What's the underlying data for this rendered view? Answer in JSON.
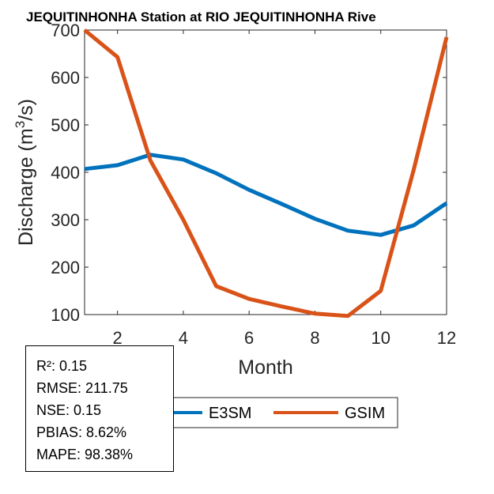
{
  "chart_data": {
    "type": "line",
    "title": "JEQUITINHONHA  Station at  RIO JEQUITINHONHA  Rive",
    "xlabel": "Month",
    "ylabel_main": "Discharge (m",
    "ylabel_sup": "3",
    "ylabel_end": "/s)",
    "xlim": [
      1,
      12
    ],
    "ylim": [
      100,
      700
    ],
    "x": [
      1,
      2,
      3,
      4,
      5,
      6,
      7,
      8,
      9,
      10,
      11,
      12
    ],
    "xticks": [
      2,
      4,
      6,
      8,
      10,
      12
    ],
    "xtick_labels": [
      "2",
      "4",
      "6",
      "8",
      "10",
      "12"
    ],
    "yticks": [
      100,
      200,
      300,
      400,
      500,
      600,
      700
    ],
    "ytick_labels": [
      "100",
      "200",
      "300",
      "400",
      "500",
      "600",
      "700"
    ],
    "grid": false,
    "series": [
      {
        "name": "E3SM",
        "color": "#0072BD",
        "values": [
          407,
          415,
          437,
          427,
          398,
          363,
          333,
          302,
          277,
          268,
          288,
          335
        ]
      },
      {
        "name": "GSIM",
        "color": "#D95319",
        "values": [
          700,
          643,
          425,
          300,
          160,
          133,
          117,
          102,
          97,
          150,
          405,
          685
        ]
      }
    ],
    "legend": {
      "position": "bottom-center",
      "entries": [
        "E3SM",
        "GSIM"
      ]
    },
    "annotation": [
      "R²: 0.15",
      "RMSE: 211.75",
      "NSE: 0.15",
      "PBIAS: 8.62%",
      "MAPE: 98.38%"
    ]
  }
}
